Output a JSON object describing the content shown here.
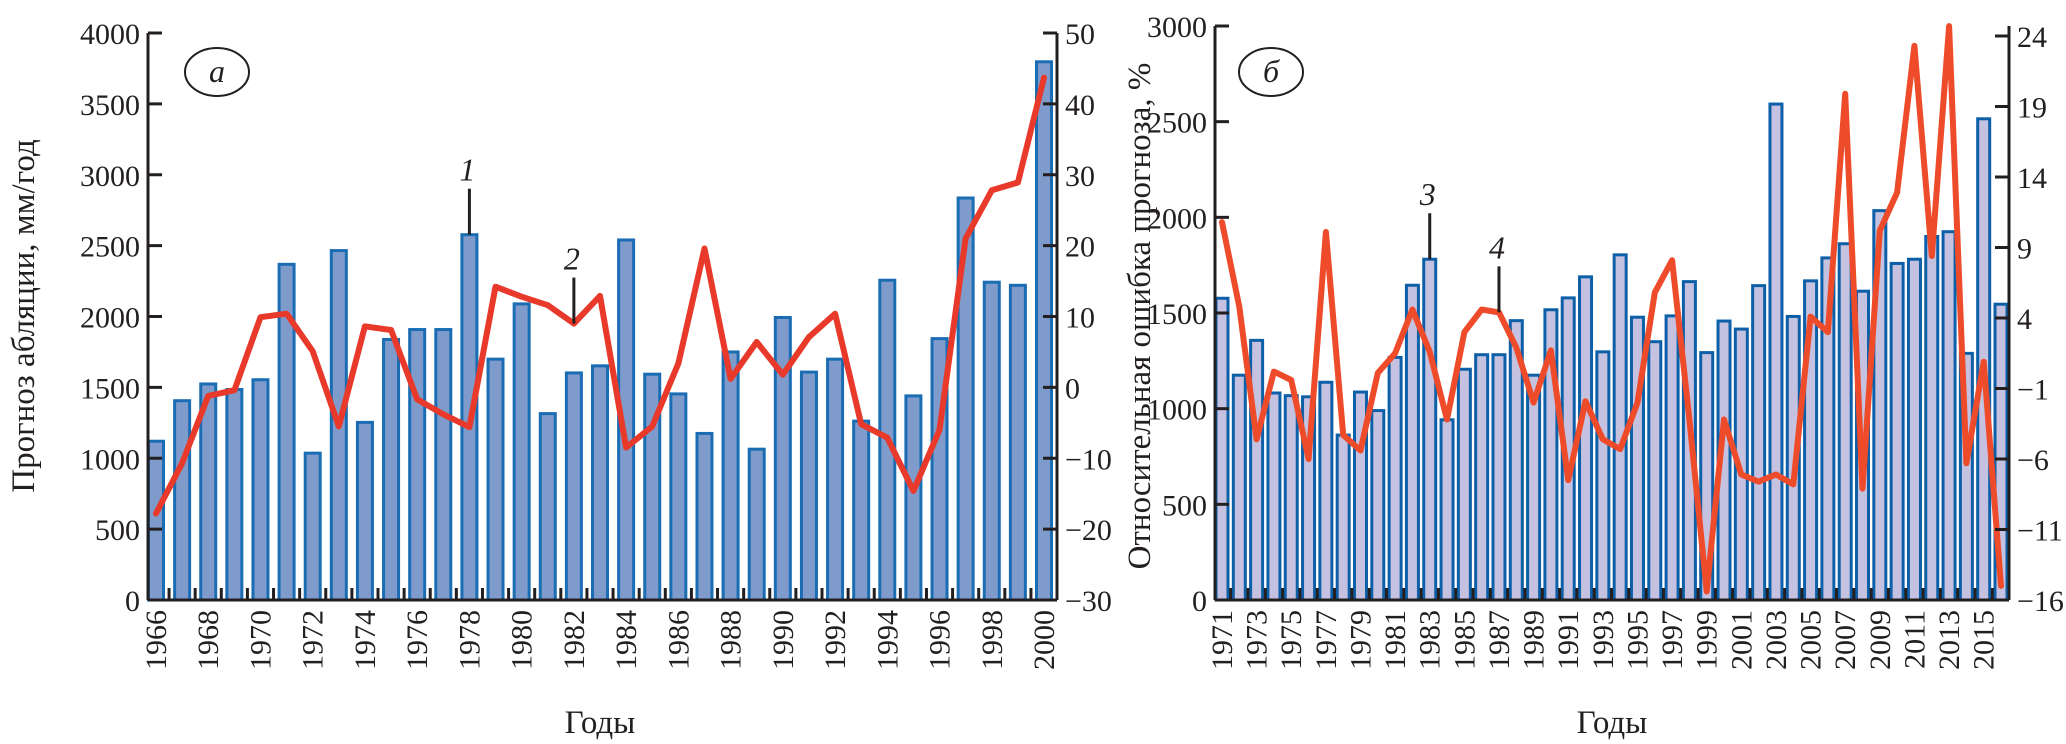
{
  "chart_data": [
    {
      "panel": "а",
      "type": "bar+line",
      "xlabel": "Годы",
      "ylabel": "Прогноз абляции, мм/год",
      "y2label": "Относительная ошибка прогноза, %",
      "ylim": [
        0,
        4000
      ],
      "yticks": [
        0,
        500,
        1000,
        1500,
        2000,
        2500,
        3000,
        3500,
        4000
      ],
      "y2lim": [
        -30,
        50
      ],
      "y2ticks": [
        -30,
        -20,
        -10,
        0,
        10,
        20,
        30,
        40,
        50
      ],
      "x": [
        1966,
        1967,
        1968,
        1969,
        1970,
        1971,
        1972,
        1973,
        1974,
        1975,
        1976,
        1977,
        1978,
        1979,
        1980,
        1981,
        1982,
        1983,
        1984,
        1985,
        1986,
        1987,
        1988,
        1989,
        1990,
        1991,
        1992,
        1993,
        1994,
        1995,
        1996,
        1997,
        1998,
        1999,
        2000
      ],
      "xticklabels": [
        "1966",
        "1968",
        "1970",
        "1972",
        "1974",
        "1976",
        "1978",
        "1980",
        "1982",
        "1984",
        "1986",
        "1988",
        "1990",
        "1992",
        "1994",
        "1996",
        "1998",
        "2000"
      ],
      "series": [
        {
          "name": "1",
          "kind": "bar",
          "axis": "left",
          "values": [
            1120,
            1406,
            1524,
            1485,
            1554,
            2368,
            1036,
            2465,
            1253,
            1838,
            1908,
            1908,
            2577,
            1699,
            2089,
            1315,
            1602,
            1652,
            2540,
            1593,
            1454,
            1175,
            1750,
            1064,
            1993,
            1608,
            1699,
            1262,
            2256,
            1440,
            1844,
            2836,
            2242,
            2220,
            3797
          ]
        },
        {
          "name": "2",
          "kind": "line",
          "axis": "right",
          "values": [
            -17.8,
            -10.7,
            -1.2,
            -0.4,
            9.9,
            10.4,
            5.1,
            -5.5,
            8.6,
            8.1,
            -1.7,
            -3.8,
            -5.6,
            14.2,
            12.8,
            11.6,
            9.0,
            12.9,
            -8.5,
            -5.5,
            3.4,
            19.6,
            1.2,
            6.4,
            1.8,
            7.1,
            10.4,
            -5.2,
            -7.1,
            -14.6,
            -6.0,
            21.0,
            27.8,
            28.9,
            43.7
          ]
        }
      ],
      "annotations": [
        {
          "text": "1",
          "year": 1978
        },
        {
          "text": "2",
          "year": 1982
        }
      ],
      "colors": {
        "bar_fill": "#7e9bcc",
        "bar_stroke": "#1a6db3",
        "line": "#e8392a"
      }
    },
    {
      "panel": "б",
      "type": "bar+line",
      "xlabel": "Годы",
      "ylim": [
        0,
        3000
      ],
      "yticks": [
        0,
        500,
        1000,
        1500,
        2000,
        2500,
        3000
      ],
      "y2lim": [
        -16,
        24
      ],
      "y2ticks": [
        -16,
        -11,
        -6,
        -1,
        4,
        9,
        14,
        19,
        24
      ],
      "x": [
        1971,
        1972,
        1973,
        1974,
        1975,
        1976,
        1977,
        1978,
        1979,
        1980,
        1981,
        1982,
        1983,
        1984,
        1985,
        1986,
        1987,
        1988,
        1989,
        1990,
        1991,
        1992,
        1993,
        1994,
        1995,
        1996,
        1997,
        1998,
        1999,
        2000,
        2001,
        2002,
        2003,
        2004,
        2005,
        2006,
        2007,
        2008,
        2009,
        2010,
        2011,
        2012,
        2013,
        2014,
        2015,
        2016
      ],
      "xticklabels": [
        "1971",
        "1973",
        "1975",
        "1977",
        "1979",
        "1981",
        "1983",
        "1985",
        "1987",
        "1989",
        "1991",
        "1993",
        "1995",
        "1997",
        "1999",
        "2001",
        "2003",
        "2005",
        "2007",
        "2009",
        "2011",
        "2013",
        "2015"
      ],
      "series": [
        {
          "name": "3",
          "kind": "bar",
          "axis": "left",
          "values": [
            1577,
            1175,
            1357,
            1082,
            1068,
            1062,
            1138,
            862,
            1087,
            990,
            1268,
            1645,
            1781,
            942,
            1206,
            1282,
            1282,
            1460,
            1175,
            1517,
            1579,
            1689,
            1297,
            1804,
            1478,
            1350,
            1485,
            1664,
            1293,
            1458,
            1416,
            1643,
            2592,
            1482,
            1668,
            1788,
            1862,
            1614,
            2035,
            1759,
            1781,
            1900,
            1925,
            1289,
            2515,
            1546
          ]
        },
        {
          "name": "4",
          "kind": "line",
          "axis": "right",
          "values": [
            10.8,
            4.8,
            -4.6,
            0.2,
            -0.4,
            -6.0,
            10.1,
            -4.3,
            -5.4,
            0.1,
            1.5,
            4.6,
            1.6,
            -3.2,
            3.0,
            4.6,
            4.4,
            1.9,
            -2.0,
            1.7,
            -7.5,
            -1.9,
            -4.6,
            -5.3,
            -2.0,
            5.8,
            8.1,
            -3.2,
            -15.4,
            -3.2,
            -7.1,
            -7.6,
            -7.1,
            -7.8,
            4.1,
            3.0,
            19.9,
            -8.1,
            10.2,
            12.9,
            23.3,
            8.4,
            24.7,
            -6.3,
            0.9,
            -15.0
          ]
        }
      ],
      "annotations": [
        {
          "text": "3",
          "year": 1983
        },
        {
          "text": "4",
          "year": 1987
        }
      ],
      "colors": {
        "bar_fill": "#c4c2e0",
        "bar_stroke": "#0d5fa8",
        "line": "#ee4b2b"
      }
    }
  ]
}
